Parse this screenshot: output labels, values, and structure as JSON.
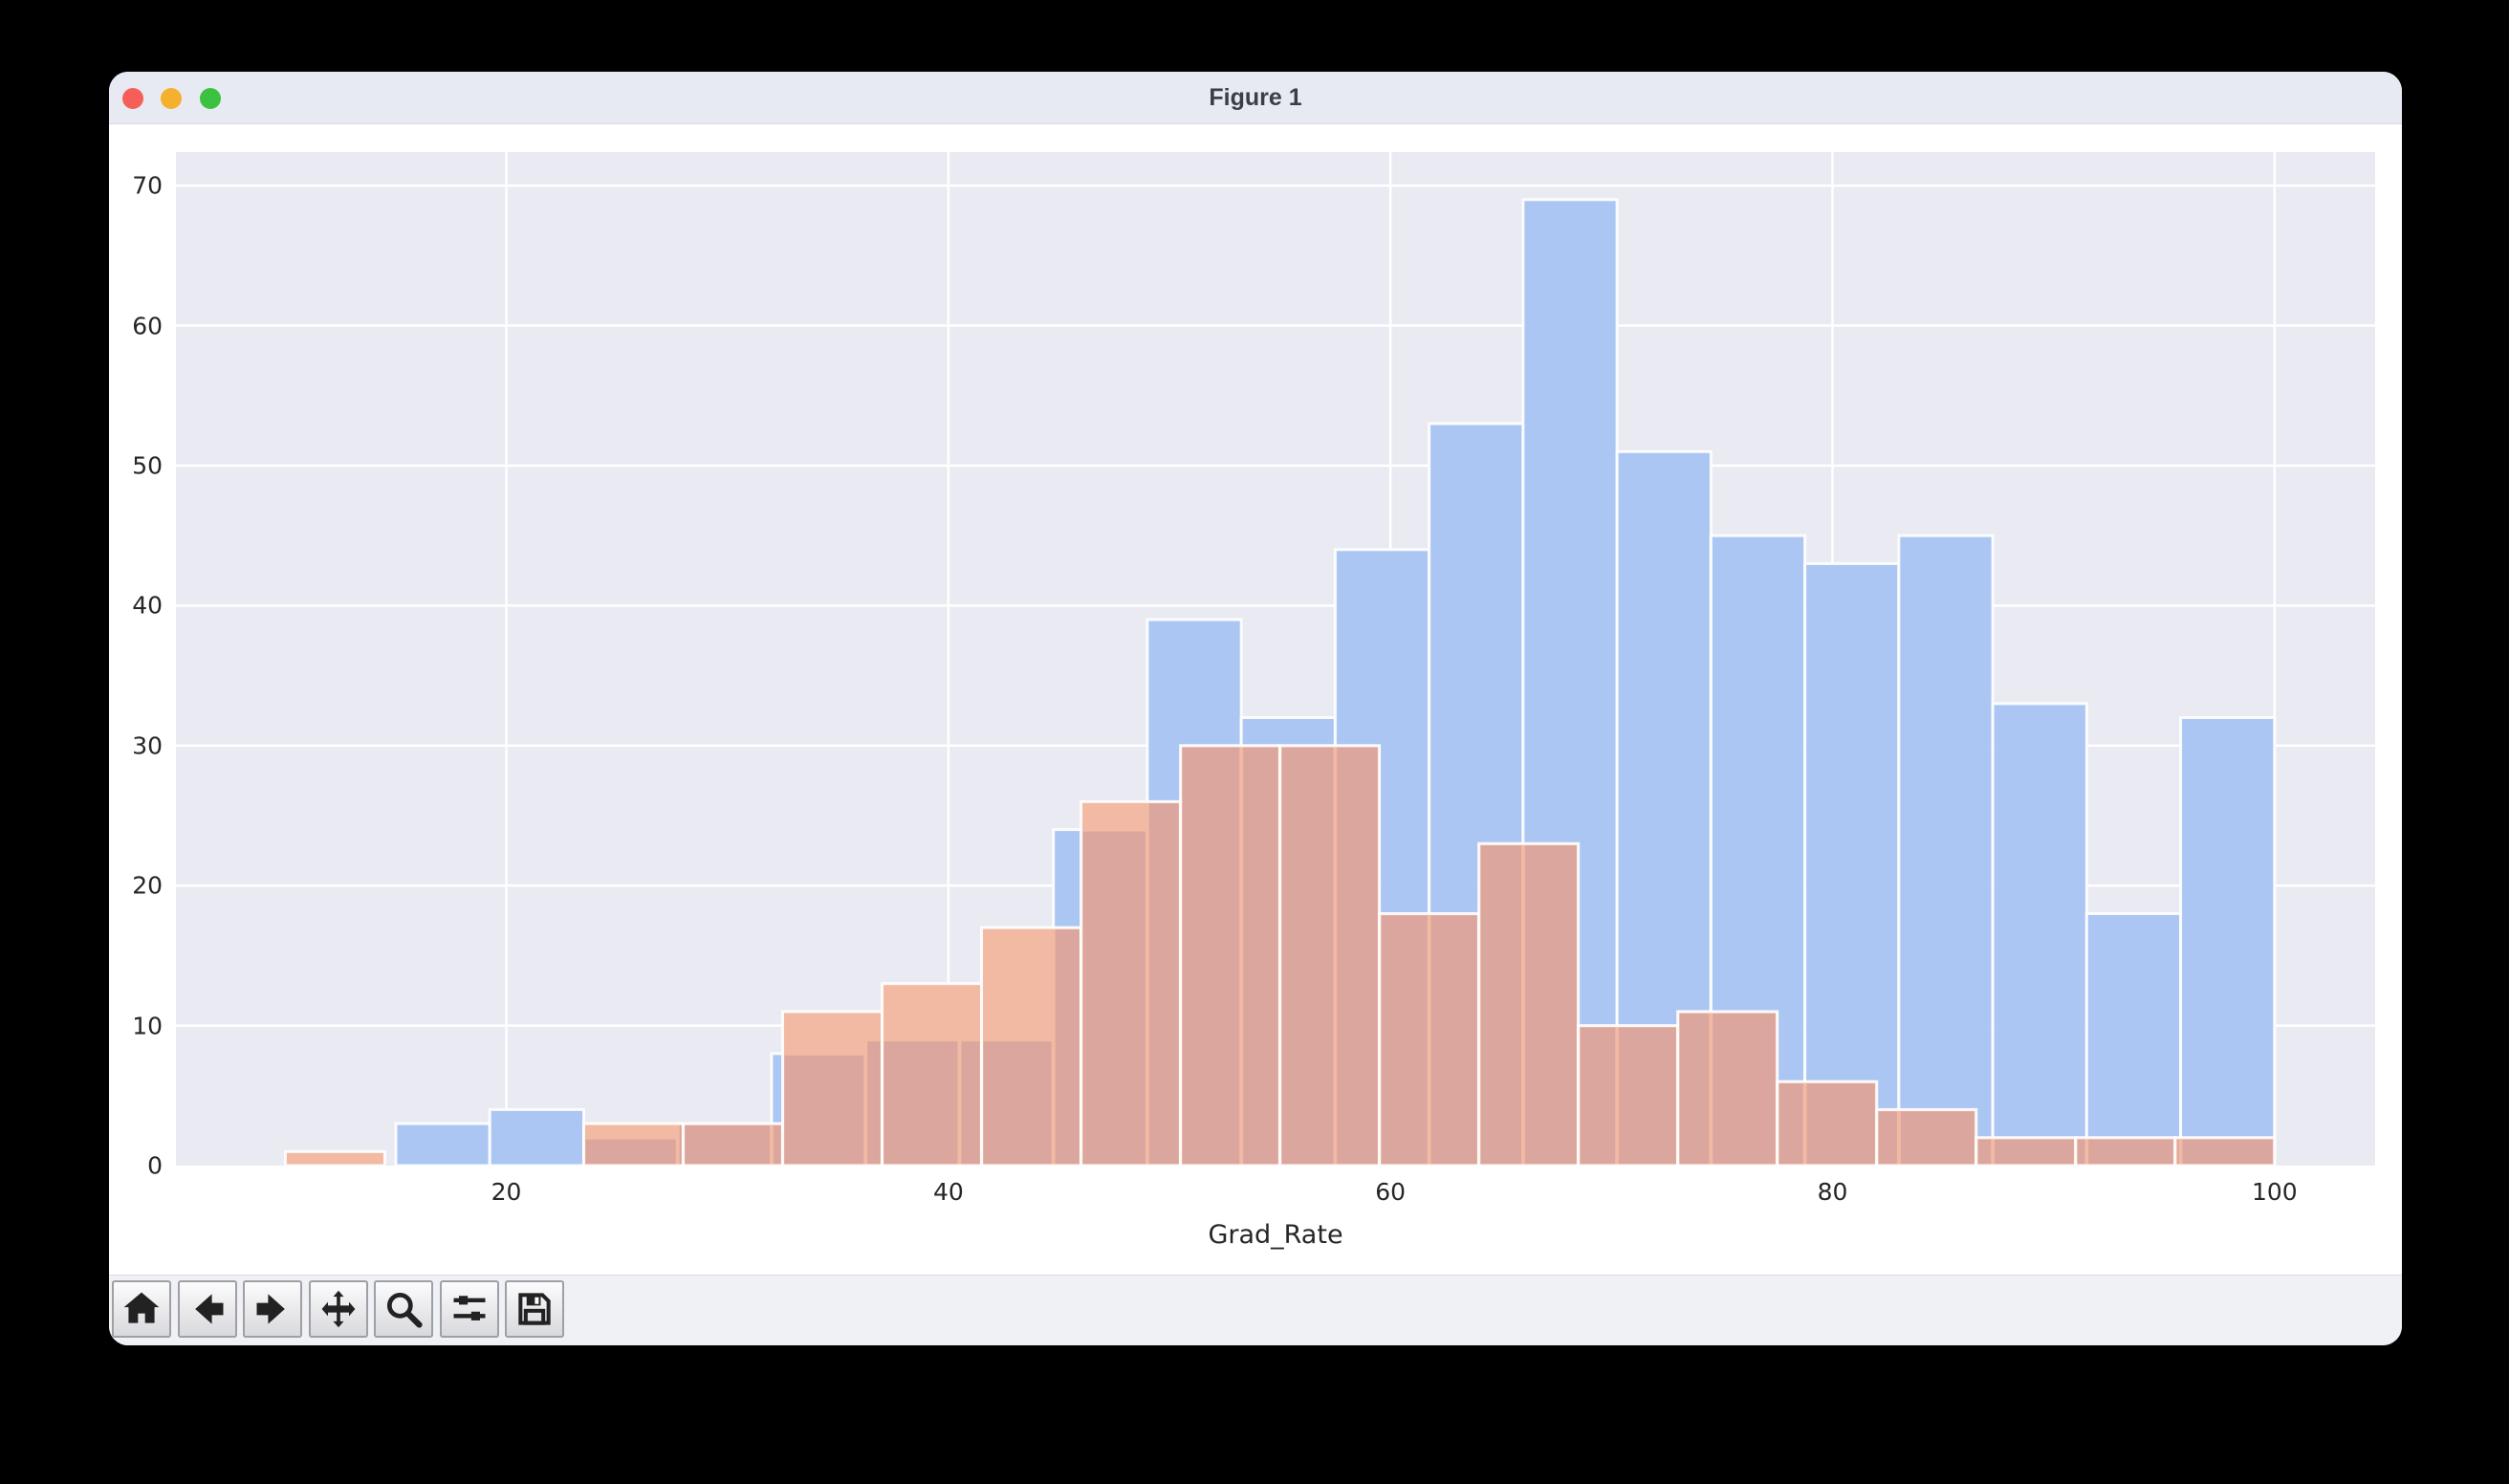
{
  "window": {
    "title": "Figure 1",
    "traffic_lights": [
      {
        "name": "close",
        "color": "#f55f58"
      },
      {
        "name": "minimize",
        "color": "#f5b12e"
      },
      {
        "name": "zoom",
        "color": "#3cc23f"
      }
    ]
  },
  "toolbar": {
    "buttons": [
      {
        "name": "home"
      },
      {
        "name": "back"
      },
      {
        "name": "forward"
      },
      {
        "name": "pan"
      },
      {
        "name": "zoom-to-rect"
      },
      {
        "name": "configure-subplots"
      },
      {
        "name": "save"
      }
    ]
  },
  "chart_data": {
    "type": "histogram",
    "title": "",
    "xlabel": "Grad_Rate",
    "ylabel": "",
    "x_ticks": [
      20,
      40,
      60,
      80,
      100
    ],
    "y_ticks": [
      0,
      10,
      20,
      30,
      40,
      50,
      60,
      70
    ],
    "xlim": [
      5.05,
      104.55
    ],
    "ylim": [
      0,
      72.4
    ],
    "grid": true,
    "legend": "none",
    "plot_bg": "#eaeaf2",
    "grid_color": "#ffffff",
    "tick_color": "#262626",
    "series": [
      {
        "name": "series-blue",
        "color": "#a6c3f2",
        "bin_start": 15,
        "bin_width": 4.25,
        "counts": [
          3,
          4,
          2,
          3,
          8,
          9,
          9,
          24,
          39,
          32,
          44,
          53,
          69,
          51,
          45,
          43,
          45,
          33,
          18,
          32
        ]
      },
      {
        "name": "series-orange",
        "color": "#f2b69e",
        "overlap_color": "#d8a69c",
        "bin_start": 10,
        "bin_width": 4.5,
        "counts": [
          1,
          0,
          0,
          3,
          3,
          11,
          13,
          17,
          26,
          30,
          30,
          18,
          23,
          10,
          11,
          6,
          4,
          2,
          2,
          2
        ]
      }
    ]
  }
}
